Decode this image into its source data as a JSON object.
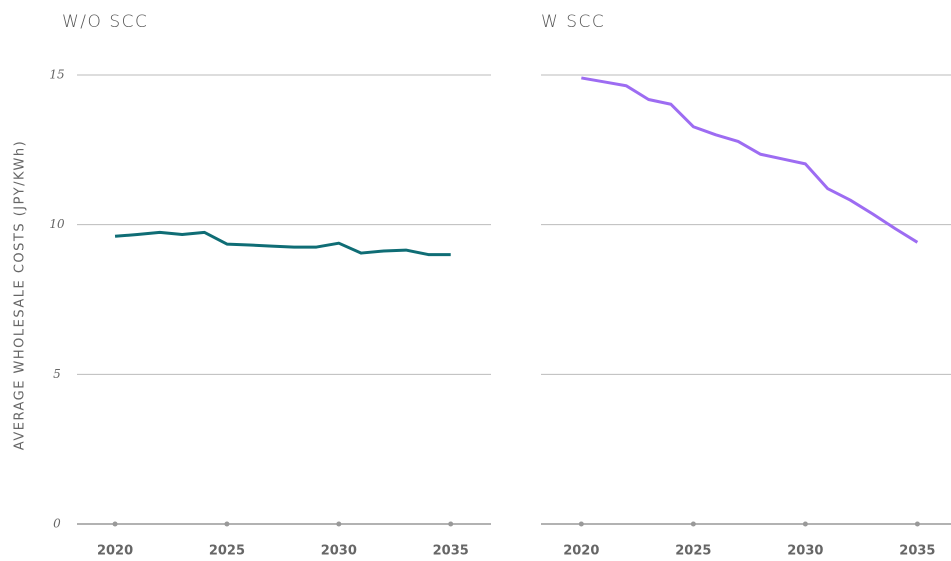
{
  "chart_data": [
    {
      "type": "line",
      "title": "W/O SCC",
      "y_label": "AVERAGE WHOLESALE COSTS (JPY/KWh)",
      "x": [
        2020,
        2021,
        2022,
        2023,
        2024,
        2025,
        2026,
        2027,
        2028,
        2029,
        2030,
        2031,
        2032,
        2033,
        2034,
        2035
      ],
      "series": [
        {
          "name": "W/O SCC",
          "color": "#0f6d75",
          "values": [
            9.61,
            9.67,
            9.74,
            9.67,
            9.74,
            9.35,
            9.32,
            9.28,
            9.25,
            9.25,
            9.38,
            9.05,
            9.12,
            9.15,
            9.0,
            9.0
          ]
        }
      ],
      "xlim": [
        2018.3,
        2036.8
      ],
      "xticks": [
        2020,
        2025,
        2030,
        2035
      ],
      "ylim": [
        0,
        16
      ],
      "yticks": [
        0,
        5,
        10,
        15
      ],
      "grid": true
    },
    {
      "type": "line",
      "title": "W SCC",
      "x": [
        2020,
        2021,
        2022,
        2023,
        2024,
        2025,
        2026,
        2027,
        2028,
        2029,
        2030,
        2031,
        2032,
        2033,
        2034,
        2035
      ],
      "series": [
        {
          "name": "W SCC",
          "color": "#9d6cf2",
          "values": [
            14.9,
            14.77,
            14.64,
            14.18,
            14.02,
            13.27,
            13.0,
            12.78,
            12.35,
            12.19,
            12.03,
            11.2,
            10.82,
            10.36,
            9.87,
            9.41
          ]
        }
      ],
      "xlim": [
        2018.2,
        2036.5
      ],
      "xticks": [
        2020,
        2025,
        2030,
        2035
      ],
      "ylim": [
        0,
        16
      ],
      "yticks": [
        0,
        5,
        10,
        15
      ],
      "grid": true
    }
  ]
}
